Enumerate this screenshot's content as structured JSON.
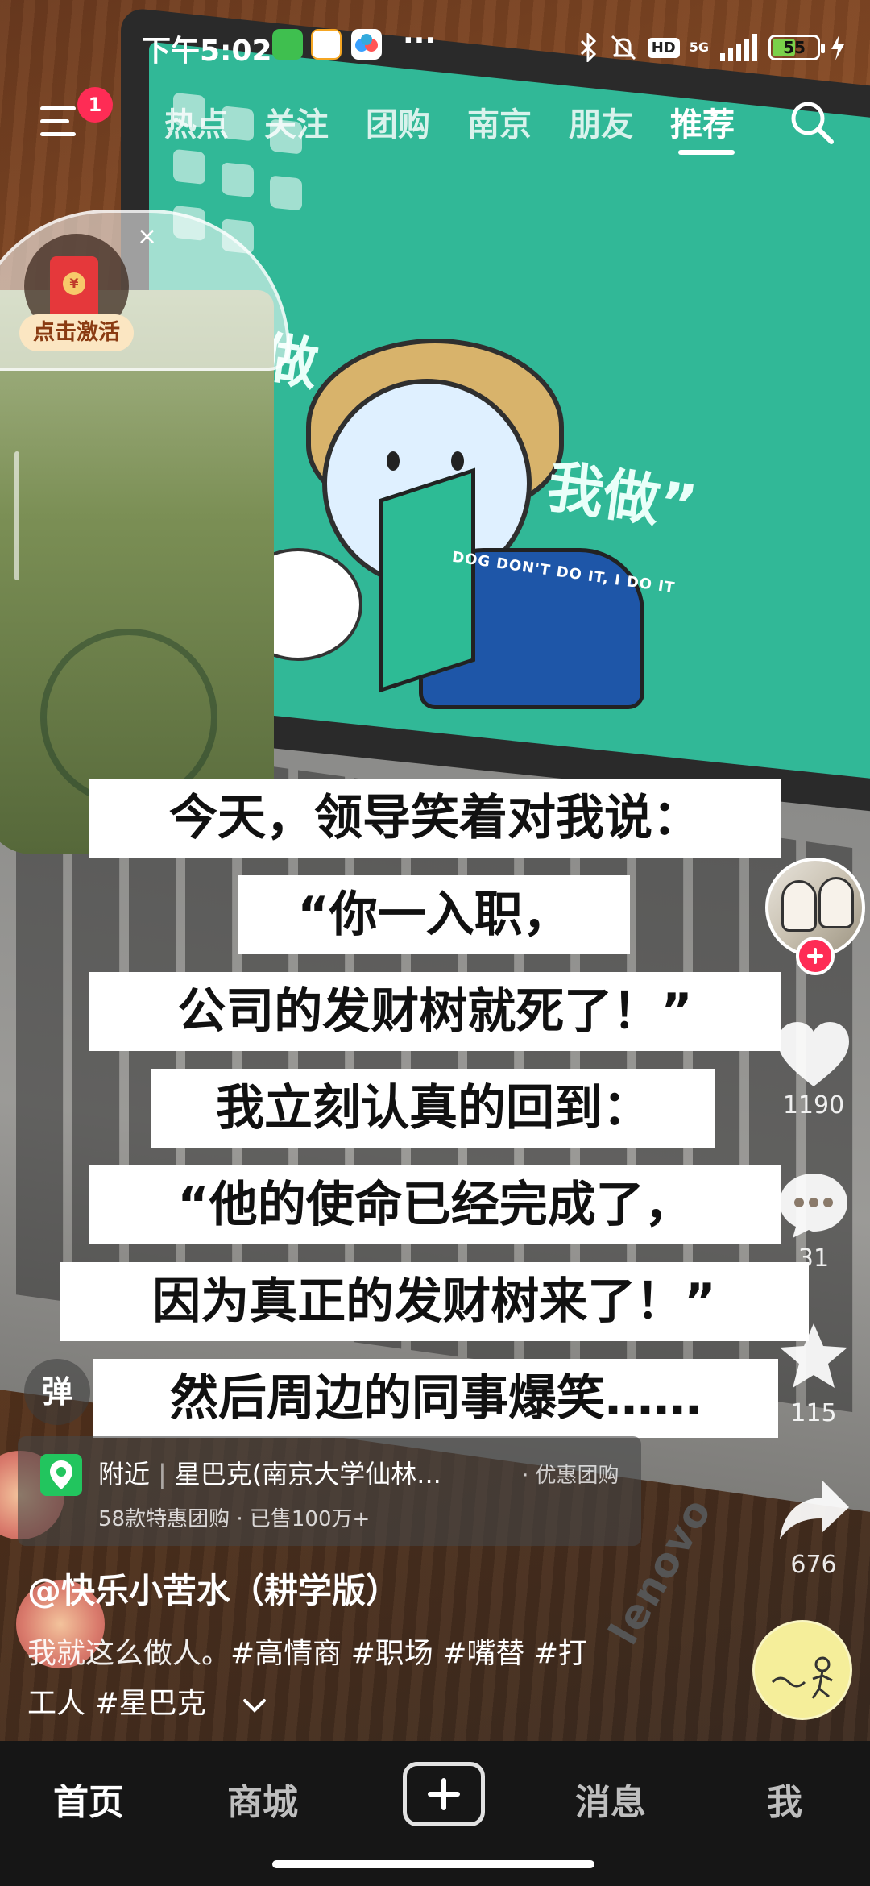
{
  "status_bar": {
    "time": "下午5:02",
    "app_icons": [
      "wechat-icon",
      "58-app-icon",
      "baidu-netdisk-icon"
    ],
    "more": "···",
    "hd_label": "HD",
    "network_label": "5G",
    "battery_percent": 55,
    "battery_text": "55",
    "battery_color": "#7ad14a"
  },
  "top_nav": {
    "menu_badge": "1",
    "tabs": [
      {
        "label": "热点"
      },
      {
        "label": "关注"
      },
      {
        "label": "团购"
      },
      {
        "label": "南京"
      },
      {
        "label": "朋友"
      },
      {
        "label": "推荐"
      }
    ],
    "active_tab": "推荐"
  },
  "red_packet": {
    "label": "点击激活",
    "close": "×",
    "coin": "¥"
  },
  "video": {
    "screen_slogan_a": "“狗不做",
    "screen_slogan_b": "我做”",
    "screen_tagline": "DOG DON'T DO IT, I DO IT",
    "brand_on_laptop": "lenovo"
  },
  "captions": [
    "今天，领导笑着对我说：",
    "“你一入职，",
    "公司的发财树就死了！”",
    "我立刻认真的回到：",
    "“他的使命已经完成了，",
    "因为真正的发财树来了！”",
    "然后周边的同事爆笑……"
  ],
  "right_rail": {
    "likes": "1190",
    "comments": "31",
    "favorites": "115",
    "shares": "676"
  },
  "danmaku": {
    "label": "弹"
  },
  "poi": {
    "tag": "附近",
    "name": "星巴克(南京大学仙林...",
    "deal": "· 优惠团购",
    "sub_a": "58款特惠团购",
    "sub_b": "· 已售100万+"
  },
  "author": {
    "name": "@快乐小苦水（耕学版）"
  },
  "description": {
    "line1_text": "我就这么做人。",
    "line1_tags": "#高情商 #职场 #嘴替 #打",
    "line2_tags": "工人 #星巴克"
  },
  "bottom_nav": {
    "items": [
      {
        "label": "首页"
      },
      {
        "label": "商城"
      },
      {
        "label": "消息"
      },
      {
        "label": "我"
      }
    ],
    "active": "首页"
  },
  "colors": {
    "accent_red": "#fe2c55",
    "screen_green": "#31b897",
    "poi_green": "#22c55e"
  }
}
